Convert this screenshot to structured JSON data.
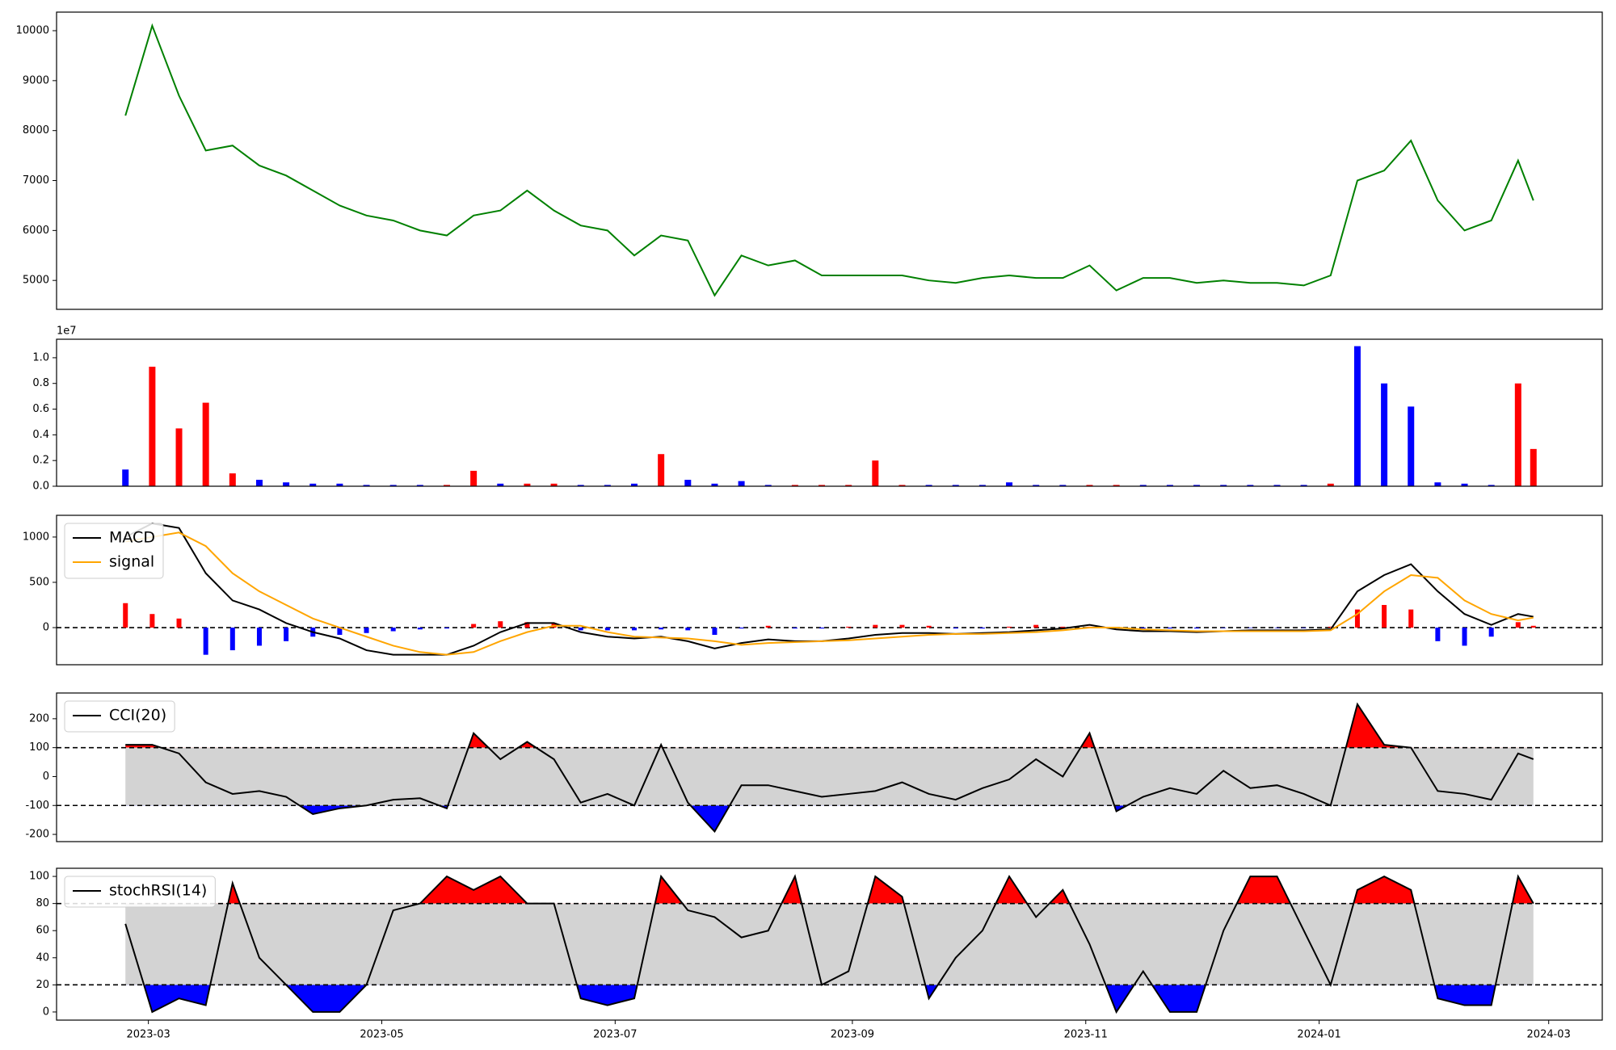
{
  "chart_data": [
    {
      "type": "line",
      "x": [
        "2023-02-23",
        "2023-03-02",
        "2023-03-09",
        "2023-03-16",
        "2023-03-23",
        "2023-03-30",
        "2023-04-06",
        "2023-04-13",
        "2023-04-20",
        "2023-04-27",
        "2023-05-04",
        "2023-05-11",
        "2023-05-18",
        "2023-05-25",
        "2023-06-01",
        "2023-06-08",
        "2023-06-15",
        "2023-06-22",
        "2023-06-29",
        "2023-07-06",
        "2023-07-13",
        "2023-07-20",
        "2023-07-27",
        "2023-08-03",
        "2023-08-10",
        "2023-08-17",
        "2023-08-24",
        "2023-08-31",
        "2023-09-07",
        "2023-09-14",
        "2023-09-21",
        "2023-09-28",
        "2023-10-05",
        "2023-10-12",
        "2023-10-19",
        "2023-10-26",
        "2023-11-02",
        "2023-11-09",
        "2023-11-16",
        "2023-11-23",
        "2023-11-30",
        "2023-12-07",
        "2023-12-14",
        "2023-12-21",
        "2023-12-28",
        "2024-01-04",
        "2024-01-11",
        "2024-01-18",
        "2024-01-25",
        "2024-02-01",
        "2024-02-08",
        "2024-02-15",
        "2024-02-22",
        "2024-02-26"
      ],
      "series": [
        {
          "color": "green",
          "values": [
            8300,
            10100,
            8700,
            7600,
            7700,
            7300,
            7100,
            6800,
            6500,
            6300,
            6200,
            6000,
            5900,
            6300,
            6400,
            6800,
            6400,
            6100,
            6000,
            5500,
            5900,
            5800,
            4700,
            5500,
            5300,
            5400,
            5100,
            5100,
            5100,
            5100,
            5000,
            4950,
            5050,
            5100,
            5050,
            5050,
            5300,
            4800,
            5050,
            5050,
            4950,
            5000,
            4950,
            4950,
            4900,
            5100,
            7000,
            7200,
            7800,
            6600,
            6000,
            6200,
            7400,
            6600
          ]
        }
      ],
      "ylim": [
        4421,
        10372
      ],
      "yticks": [
        5000,
        6000,
        7000,
        8000,
        9000,
        10000
      ]
    },
    {
      "type": "bar",
      "values": [
        0.13,
        0.93,
        0.45,
        0.65,
        0.1,
        0.05,
        0.03,
        0.02,
        0.02,
        0.01,
        0.01,
        0.01,
        0.01,
        0.12,
        0.02,
        0.02,
        0.02,
        0.01,
        0.01,
        0.02,
        0.25,
        0.05,
        0.02,
        0.04,
        0.01,
        0.01,
        0.01,
        0.01,
        0.2,
        0.01,
        0.01,
        0.01,
        0.01,
        0.03,
        0.01,
        0.01,
        0.01,
        0.01,
        0.01,
        0.01,
        0.01,
        0.01,
        0.01,
        0.01,
        0.01,
        0.02,
        1.09,
        0.8,
        0.62,
        0.03,
        0.02,
        0.01,
        0.8,
        0.29
      ],
      "bar_colors": [
        "blue",
        "red",
        "red",
        "red",
        "red",
        "blue",
        "blue",
        "blue",
        "blue",
        "blue",
        "blue",
        "blue",
        "red",
        "red",
        "blue",
        "red",
        "red",
        "blue",
        "blue",
        "blue",
        "red",
        "blue",
        "blue",
        "blue",
        "blue",
        "red",
        "red",
        "red",
        "red",
        "red",
        "blue",
        "blue",
        "blue",
        "blue",
        "blue",
        "blue",
        "red",
        "red",
        "blue",
        "blue",
        "blue",
        "blue",
        "blue",
        "blue",
        "blue",
        "red",
        "blue",
        "blue",
        "blue",
        "blue",
        "blue",
        "blue",
        "red",
        "red"
      ],
      "offset_label": "1e7",
      "ylim": [
        0,
        1.144
      ],
      "yticks": [
        {
          "value": 0,
          "label": "0.0"
        },
        {
          "value": 0.2,
          "label": "0.2"
        },
        {
          "value": 0.4,
          "label": "0.4"
        },
        {
          "value": 0.6,
          "label": "0.6"
        },
        {
          "value": 0.8,
          "label": "0.8"
        },
        {
          "value": 1,
          "label": "1.0"
        }
      ]
    },
    {
      "type": "line",
      "series": [
        {
          "name": "MACD",
          "color": "black",
          "values": [
            1000,
            1150,
            1100,
            600,
            300,
            200,
            50,
            -50,
            -120,
            -250,
            -300,
            -300,
            -300,
            -200,
            -50,
            50,
            50,
            -50,
            -100,
            -120,
            -100,
            -150,
            -230,
            -170,
            -130,
            -150,
            -150,
            -120,
            -80,
            -60,
            -60,
            -70,
            -60,
            -50,
            -30,
            -10,
            30,
            -20,
            -40,
            -40,
            -50,
            -40,
            -30,
            -30,
            -30,
            -20,
            400,
            580,
            700,
            400,
            150,
            30,
            150,
            120
          ]
        },
        {
          "name": "signal",
          "color": "orange",
          "values": [
            950,
            1000,
            1050,
            900,
            600,
            400,
            250,
            100,
            0,
            -100,
            -200,
            -270,
            -300,
            -270,
            -150,
            -50,
            20,
            20,
            -50,
            -100,
            -110,
            -120,
            -150,
            -190,
            -170,
            -160,
            -150,
            -140,
            -120,
            -100,
            -80,
            -70,
            -70,
            -60,
            -50,
            -30,
            0,
            0,
            -20,
            -30,
            -40,
            -40,
            -40,
            -40,
            -40,
            -30,
            150,
            400,
            580,
            550,
            300,
            150,
            80,
            110
          ]
        }
      ],
      "histogram": [
        270,
        150,
        100,
        -300,
        -250,
        -200,
        -150,
        -100,
        -80,
        -60,
        -40,
        -20,
        -10,
        40,
        70,
        60,
        50,
        -30,
        -30,
        -30,
        -20,
        -30,
        -80,
        -10,
        20,
        -10,
        -10,
        10,
        30,
        30,
        20,
        -10,
        -10,
        10,
        30,
        10,
        10,
        -10,
        -10,
        -10,
        -10,
        -5,
        -5,
        -5,
        -5,
        10,
        200,
        250,
        200,
        -150,
        -200,
        -100,
        60,
        20
      ],
      "histogram_colors": {
        "positive": "red",
        "negative": "blue"
      },
      "hlines": [
        0
      ],
      "legend": "upper left",
      "ylim": [
        -410,
        1240
      ],
      "yticks": [
        0,
        500,
        1000
      ]
    },
    {
      "type": "line",
      "series": [
        {
          "name": "CCI(20)",
          "color": "black",
          "values": [
            110,
            110,
            80,
            -20,
            -60,
            -50,
            -70,
            -130,
            -110,
            -100,
            -80,
            -75,
            -110,
            150,
            60,
            120,
            60,
            -90,
            -60,
            -100,
            110,
            -90,
            -190,
            -30,
            -30,
            -50,
            -70,
            -60,
            -50,
            -20,
            -60,
            -80,
            -40,
            -10,
            60,
            0,
            150,
            -120,
            -70,
            -40,
            -60,
            20,
            -40,
            -30,
            -60,
            -100,
            250,
            110,
            100,
            -50,
            -60,
            -80,
            80,
            60
          ]
        }
      ],
      "bands": [
        -100,
        100
      ],
      "band_fill": "lightgray",
      "above_color": "red",
      "below_color": "blue",
      "legend": "upper left",
      "ylim": [
        -225,
        289
      ],
      "yticks": [
        -200,
        -100,
        0,
        100,
        200
      ]
    },
    {
      "type": "line",
      "series": [
        {
          "name": "stochRSI(14)",
          "color": "black",
          "values": [
            65,
            0,
            10,
            5,
            95,
            40,
            20,
            0,
            0,
            20,
            75,
            80,
            100,
            90,
            100,
            80,
            80,
            10,
            5,
            10,
            100,
            75,
            70,
            55,
            60,
            100,
            20,
            30,
            100,
            85,
            10,
            40,
            60,
            100,
            70,
            90,
            50,
            0,
            30,
            0,
            0,
            60,
            100,
            100,
            60,
            20,
            90,
            100,
            90,
            10,
            5,
            5,
            100,
            80
          ]
        }
      ],
      "bands": [
        20,
        80
      ],
      "band_fill": "lightgray",
      "above_color": "red",
      "below_color": "blue",
      "legend": "upper left",
      "ylim": [
        -6,
        106
      ],
      "yticks": [
        0,
        20,
        40,
        60,
        80,
        100
      ],
      "xlim": [
        "2023-02-05",
        "2024-03-15"
      ],
      "xticks": [
        {
          "value": "2023-03-01",
          "label": "2023-03"
        },
        {
          "value": "2023-05-01",
          "label": "2023-05"
        },
        {
          "value": "2023-07-01",
          "label": "2023-07"
        },
        {
          "value": "2023-09-01",
          "label": "2023-09"
        },
        {
          "value": "2023-11-01",
          "label": "2023-11"
        },
        {
          "value": "2024-01-01",
          "label": "2024-01"
        },
        {
          "value": "2024-03-01",
          "label": "2024-03"
        }
      ]
    }
  ]
}
